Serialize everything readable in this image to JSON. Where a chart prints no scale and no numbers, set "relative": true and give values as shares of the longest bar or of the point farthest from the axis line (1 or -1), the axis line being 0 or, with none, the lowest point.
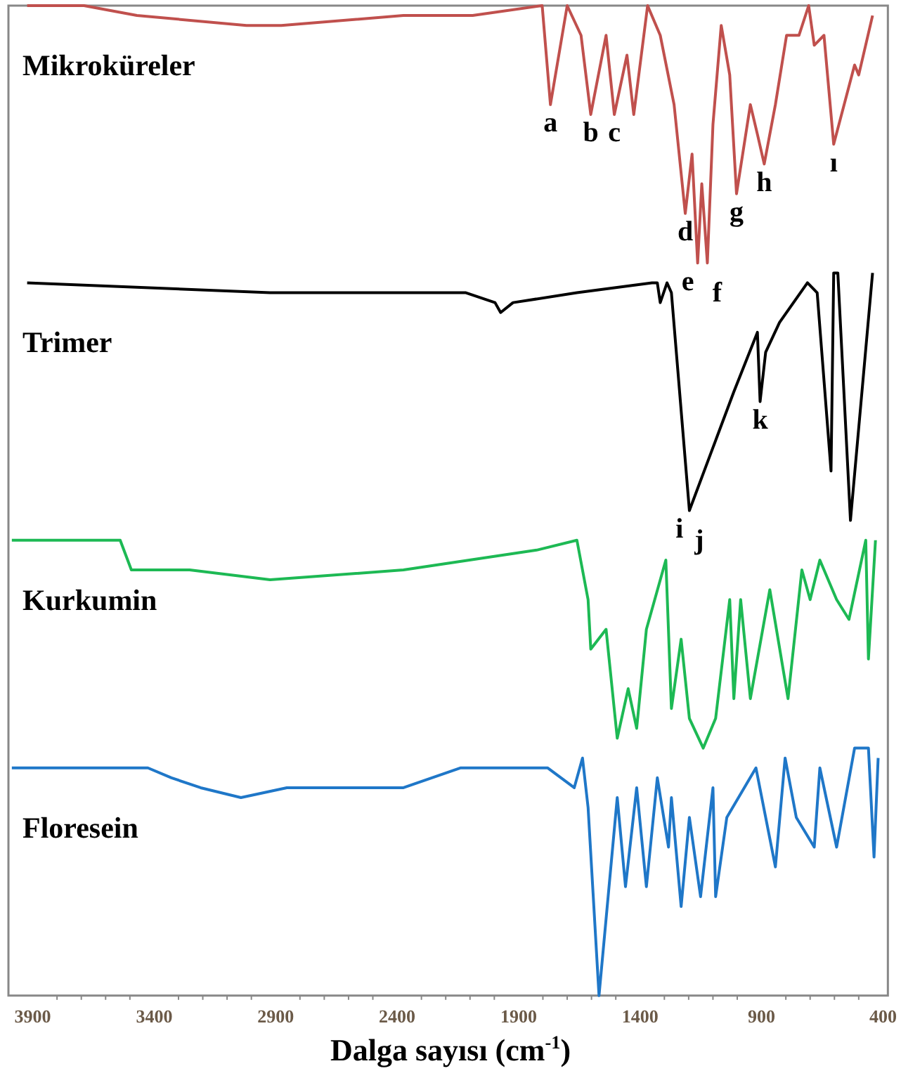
{
  "chart_data": {
    "type": "line",
    "relative": true,
    "xlabel": "Dalga sayısı (cm$^{-1}$)",
    "xlim": [
      4000,
      380
    ],
    "xticks": [
      3900,
      3400,
      2900,
      2400,
      1900,
      1400,
      900,
      400
    ],
    "grid": false,
    "legend": false,
    "tick_labels": "x",
    "marker": "none",
    "line_style": "solid",
    "series": [
      {
        "name": "Mikroküreler",
        "color": "#c0504d",
        "x": [
          3923,
          3689,
          3471,
          3020,
          2877,
          2374,
          2089,
          1803,
          1769,
          1700,
          1643,
          1603,
          1540,
          1506,
          1454,
          1426,
          1369,
          1317,
          1260,
          1214,
          1186,
          1163,
          1146,
          1123,
          1100,
          1066,
          1031,
          1003,
          946,
          917,
          889,
          843,
          797,
          746,
          706,
          683,
          643,
          603,
          517,
          500,
          443
        ],
        "values": [
          1.0,
          1.0,
          0.99,
          0.98,
          0.98,
          0.99,
          0.99,
          1.0,
          0.9,
          1.0,
          0.97,
          0.89,
          0.97,
          0.89,
          0.95,
          0.89,
          1.0,
          0.97,
          0.9,
          0.79,
          0.85,
          0.74,
          0.82,
          0.74,
          0.88,
          0.98,
          0.93,
          0.81,
          0.9,
          0.87,
          0.84,
          0.9,
          0.97,
          0.97,
          1.0,
          0.96,
          0.97,
          0.86,
          0.94,
          0.93,
          0.99
        ]
      },
      {
        "name": "Trimer",
        "color": "#000000",
        "x": [
          3923,
          2923,
          2117,
          1997,
          1974,
          1923,
          1660,
          1351,
          1329,
          1317,
          1289,
          1271,
          1197,
          1014,
          917,
          906,
          883,
          826,
          711,
          671,
          614,
          603,
          586,
          534,
          443
        ],
        "values": [
          0.72,
          0.71,
          0.71,
          0.7,
          0.69,
          0.7,
          0.71,
          0.72,
          0.72,
          0.7,
          0.72,
          0.71,
          0.49,
          0.61,
          0.67,
          0.6,
          0.65,
          0.68,
          0.72,
          0.71,
          0.53,
          0.73,
          0.73,
          0.48,
          0.73
        ]
      },
      {
        "name": "Kurkumin",
        "color": "#1db954",
        "x": [
          3986,
          3540,
          3494,
          3449,
          3254,
          2923,
          2374,
          1826,
          1660,
          1614,
          1603,
          1540,
          1494,
          1449,
          1414,
          1374,
          1294,
          1271,
          1231,
          1197,
          1140,
          1089,
          1031,
          1014,
          986,
          946,
          866,
          791,
          734,
          700,
          660,
          591,
          540,
          471,
          460,
          431
        ],
        "values": [
          0.46,
          0.46,
          0.43,
          0.43,
          0.43,
          0.42,
          0.43,
          0.45,
          0.46,
          0.4,
          0.35,
          0.37,
          0.26,
          0.31,
          0.27,
          0.37,
          0.44,
          0.29,
          0.36,
          0.28,
          0.25,
          0.28,
          0.4,
          0.3,
          0.4,
          0.3,
          0.41,
          0.3,
          0.43,
          0.4,
          0.44,
          0.4,
          0.38,
          0.46,
          0.34,
          0.46
        ]
      },
      {
        "name": "Floresein",
        "color": "#1f77c8",
        "x": [
          3986,
          3426,
          3329,
          3209,
          3043,
          2854,
          2374,
          2140,
          1997,
          1780,
          1671,
          1637,
          1614,
          1569,
          1494,
          1460,
          1414,
          1374,
          1329,
          1283,
          1271,
          1231,
          1197,
          1151,
          1100,
          1089,
          1043,
          923,
          843,
          803,
          757,
          683,
          660,
          591,
          517,
          460,
          437,
          420
        ],
        "values": [
          0.23,
          0.23,
          0.22,
          0.21,
          0.2,
          0.21,
          0.21,
          0.23,
          0.23,
          0.23,
          0.21,
          0.24,
          0.19,
          0.0,
          0.2,
          0.11,
          0.21,
          0.11,
          0.22,
          0.15,
          0.2,
          0.09,
          0.18,
          0.1,
          0.21,
          0.1,
          0.18,
          0.23,
          0.13,
          0.24,
          0.18,
          0.15,
          0.23,
          0.15,
          0.25,
          0.25,
          0.14,
          0.24
        ]
      }
    ],
    "annotations": [
      {
        "text": "a",
        "x": 1769,
        "y": 0.9
      },
      {
        "text": "b",
        "x": 1603,
        "y": 0.89
      },
      {
        "text": "c",
        "x": 1506,
        "y": 0.89
      },
      {
        "text": "d",
        "x": 1214,
        "y": 0.79
      },
      {
        "text": "e",
        "x": 1163,
        "y": 0.74
      },
      {
        "text": "f",
        "x": 1123,
        "y": 0.74
      },
      {
        "text": "g",
        "x": 1003,
        "y": 0.81
      },
      {
        "text": "h",
        "x": 889,
        "y": 0.84
      },
      {
        "text": "ı",
        "x": 603,
        "y": 0.86
      },
      {
        "text": "i",
        "x": 1197,
        "y": 0.49
      },
      {
        "text": "j",
        "x": 1197,
        "y": 0.49
      },
      {
        "text": "k",
        "x": 906,
        "y": 0.6
      }
    ]
  }
}
